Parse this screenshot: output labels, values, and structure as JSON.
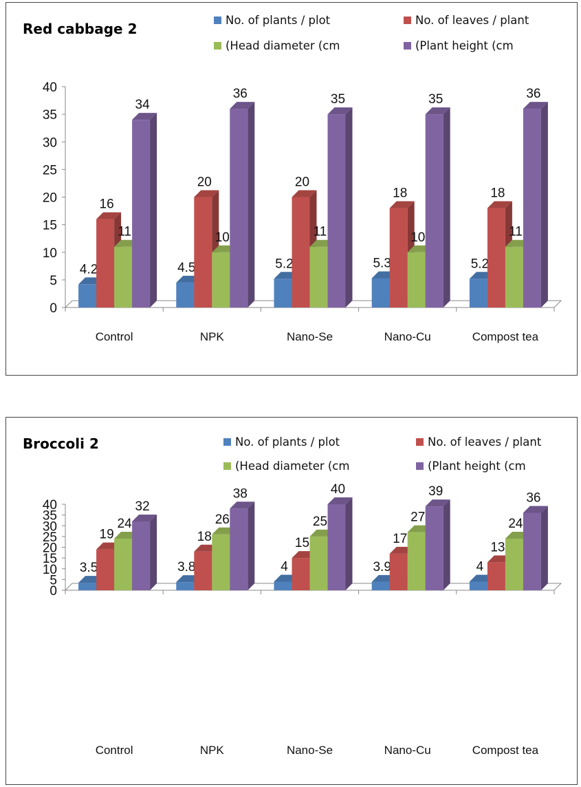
{
  "chart_data": [
    {
      "type": "bar",
      "title": "Red cabbage 2",
      "categories": [
        "Control",
        "NPK",
        "Nano-Se",
        "Nano-Cu",
        "Compost tea"
      ],
      "series": [
        {
          "name": "No. of plants / plot",
          "color": "#4F81BD",
          "values": [
            4.2,
            4.5,
            5.2,
            5.3,
            5.2
          ],
          "labels": [
            "4.2",
            "4.5",
            "5.2",
            "5.3",
            "5.2"
          ]
        },
        {
          "name": "No. of leaves / plant",
          "color": "#C0504D",
          "values": [
            16,
            20,
            20,
            18,
            18
          ],
          "labels": [
            "16",
            "20",
            "20",
            "18",
            "18"
          ]
        },
        {
          "name": "(Head diameter (cm",
          "color": "#9BBB59",
          "values": [
            11,
            10,
            11,
            10,
            11
          ],
          "labels": [
            "11",
            "10",
            "11",
            "10",
            "11"
          ]
        },
        {
          "name": "(Plant height (cm",
          "color": "#8064A2",
          "values": [
            34,
            36,
            35,
            35,
            36
          ],
          "labels": [
            "34",
            "36",
            "35",
            "35",
            "36"
          ]
        }
      ],
      "yticks": [
        "0",
        "5",
        "10",
        "15",
        "20",
        "25",
        "30",
        "35",
        "40"
      ],
      "ylim": [
        0,
        40
      ],
      "xlabel": "",
      "ylabel": "",
      "grid": false,
      "legend": "top-right"
    },
    {
      "type": "bar",
      "title": "Broccoli 2",
      "categories": [
        "Control",
        "NPK",
        "Nano-Se",
        "Nano-Cu",
        "Compost tea"
      ],
      "series": [
        {
          "name": "No. of plants / plot",
          "color": "#4F81BD",
          "values": [
            3.5,
            3.8,
            4,
            3.9,
            4
          ],
          "labels": [
            "3.5",
            "3.8",
            "4",
            "3.9",
            "4"
          ]
        },
        {
          "name": "No. of leaves / plant",
          "color": "#C0504D",
          "values": [
            19,
            18,
            15,
            17,
            13
          ],
          "labels": [
            "19",
            "18",
            "15",
            "17",
            "13"
          ]
        },
        {
          "name": "(Head diameter (cm",
          "color": "#9BBB59",
          "values": [
            24,
            26,
            25,
            27,
            24
          ],
          "labels": [
            "24",
            "26",
            "25",
            "27",
            "24"
          ]
        },
        {
          "name": "(Plant height (cm",
          "color": "#8064A2",
          "values": [
            32,
            38,
            40,
            39,
            36
          ],
          "labels": [
            "32",
            "38",
            "40",
            "39",
            "36"
          ]
        }
      ],
      "yticks": [
        "0",
        "5",
        "10",
        "15",
        "20",
        "25",
        "30",
        "35",
        "40"
      ],
      "ylim": [
        0,
        40
      ],
      "xlabel": "",
      "ylabel": "",
      "grid": false,
      "legend": "top-right"
    }
  ]
}
